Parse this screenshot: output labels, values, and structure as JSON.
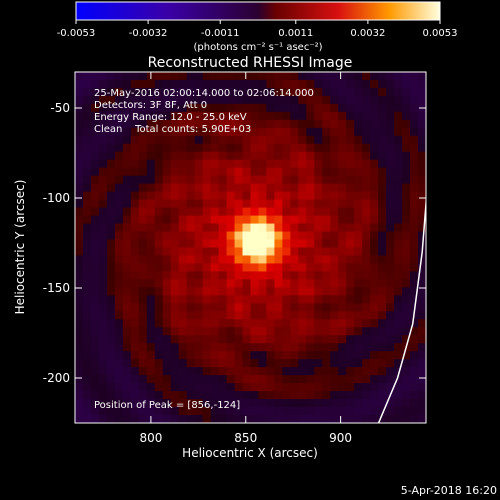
{
  "chart_data": {
    "type": "heatmap",
    "title": "Reconstructed RHESSI Image",
    "xlabel": "Heliocentric X (arcsec)",
    "ylabel": "Heliocentric Y (arcsec)",
    "xlim": [
      760,
      945
    ],
    "ylim": [
      -225,
      -30
    ],
    "x_ticks": [
      800,
      850,
      900
    ],
    "y_ticks": [
      -50,
      -100,
      -150,
      -200
    ],
    "colorbar": {
      "min": -0.0053,
      "max": 0.0053,
      "tick_values": [
        -0.0053,
        -0.0032,
        -0.0011,
        0.0011,
        0.0032,
        0.0053
      ],
      "tick_labels": [
        "-0.0053",
        "-0.0032",
        "-0.0011",
        "0.0011",
        "0.0032",
        "0.0053"
      ],
      "unit_label": "(photons cm⁻² s⁻¹ asec⁻²)"
    },
    "annotations": [
      "25-May-2016 02:00:14.000 to 02:06:14.000",
      "Detectors: 3F 8F, Att 0",
      "Energy Range: 12.0 - 25.0 keV",
      "Clean    Total counts: 5.90E+03"
    ],
    "peak_label": "Position of Peak = [856,-124]",
    "peak": {
      "x": 856,
      "y": -124,
      "value": 0.0053
    },
    "limb_line": [
      [
        920,
        -225
      ],
      [
        930,
        -200
      ],
      [
        938,
        -170
      ],
      [
        943,
        -130
      ],
      [
        946,
        -90
      ],
      [
        948,
        -45
      ]
    ],
    "timestamp": "5-Apr-2018 16:20"
  }
}
